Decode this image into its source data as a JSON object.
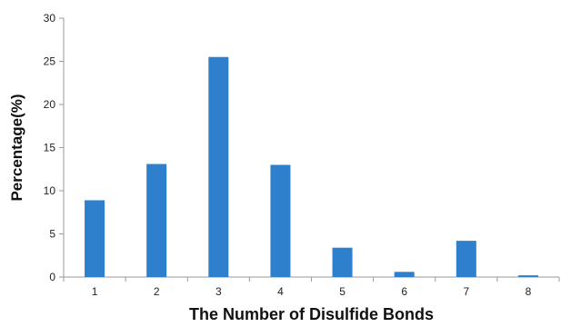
{
  "chart_data": {
    "type": "bar",
    "title": "",
    "xlabel": "The Number of Disulfide Bonds",
    "ylabel": "Percentage(%)",
    "categories": [
      "1",
      "2",
      "3",
      "4",
      "5",
      "6",
      "7",
      "8"
    ],
    "values": [
      8.9,
      13.1,
      25.5,
      13.0,
      3.4,
      0.6,
      4.2,
      0.2
    ],
    "ylim": [
      0,
      30
    ],
    "yticks": [
      "0",
      "5",
      "10",
      "15",
      "20",
      "25",
      "30"
    ],
    "grid": false,
    "legend": "none",
    "bar_color": "#2E7FCC",
    "axis_color": "#9a9a9a"
  }
}
